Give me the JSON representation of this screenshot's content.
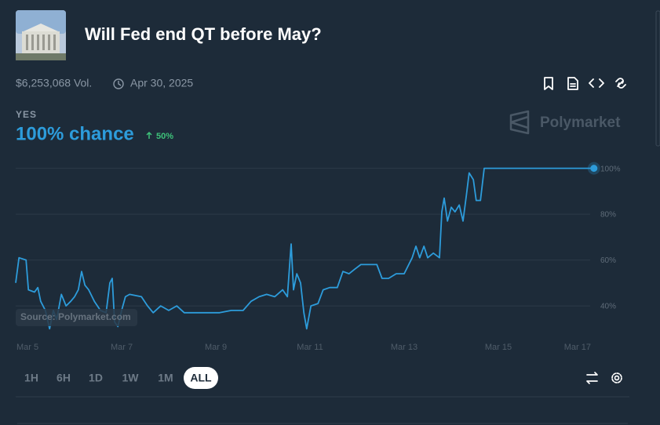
{
  "header": {
    "title": "Will Fed end QT before May?",
    "volume": "$6,253,068 Vol.",
    "end_date": "Apr 30, 2025"
  },
  "outcome": {
    "chance": "100% chance",
    "change": "50%"
  },
  "watermark": {
    "brand": "Polymarket",
    "source": "Source: Polymarket.com"
  },
  "chart_data": {
    "type": "line",
    "x": [
      4.75,
      4.82,
      4.97,
      5.02,
      5.15,
      5.22,
      5.28,
      5.38,
      5.47,
      5.55,
      5.62,
      5.72,
      5.82,
      5.92,
      6.0,
      6.08,
      6.15,
      6.22,
      6.3,
      6.42,
      6.55,
      6.67,
      6.75,
      6.8,
      6.85,
      6.92,
      7.0,
      7.08,
      7.17,
      7.42,
      7.55,
      7.67,
      7.83,
      8.0,
      8.17,
      8.33,
      8.58,
      8.83,
      9.08,
      9.33,
      9.58,
      9.75,
      9.92,
      10.08,
      10.25,
      10.42,
      10.52,
      10.6,
      10.65,
      10.72,
      10.8,
      10.87,
      10.93,
      11.02,
      11.17,
      11.28,
      11.42,
      11.58,
      11.7,
      11.83,
      11.95,
      12.08,
      12.25,
      12.42,
      12.53,
      12.67,
      12.83,
      13.0,
      13.17,
      13.25,
      13.33,
      13.42,
      13.5,
      13.62,
      13.75,
      13.8,
      13.85,
      13.92,
      14.0,
      14.08,
      14.17,
      14.25,
      14.32,
      14.38,
      14.47,
      14.53,
      14.62,
      14.7,
      15.25,
      16.08,
      17.03
    ],
    "series": [
      {
        "name": "YES",
        "color": "#2d9cdb",
        "values": [
          50,
          61,
          60,
          47,
          46,
          48,
          42,
          38,
          30,
          38,
          34,
          45,
          40,
          42,
          44,
          47,
          55,
          49,
          47,
          42,
          38,
          37,
          50,
          52,
          33,
          31,
          38,
          44,
          45,
          44,
          40,
          37,
          40,
          38,
          40,
          37,
          37,
          37,
          37,
          38,
          38,
          42,
          44,
          45,
          44,
          47,
          44,
          67,
          47,
          54,
          50,
          37,
          30,
          40,
          41,
          47,
          48,
          48,
          55,
          54,
          56,
          58,
          58,
          58,
          52,
          52,
          54,
          54,
          61,
          66,
          61,
          66,
          61,
          63,
          61,
          81,
          87,
          77,
          83,
          81,
          84,
          77,
          88,
          98,
          95,
          86,
          86,
          100,
          100,
          100,
          100
        ]
      }
    ],
    "xlim": [
      4.75,
      17.05
    ],
    "xticks": [
      {
        "value": 5,
        "label": "Mar 5"
      },
      {
        "value": 7,
        "label": "Mar 7"
      },
      {
        "value": 9,
        "label": "Mar 9"
      },
      {
        "value": 11,
        "label": "Mar 11"
      },
      {
        "value": 13,
        "label": "Mar 13"
      },
      {
        "value": 15,
        "label": "Mar 15"
      },
      {
        "value": 17,
        "label": "Mar 17"
      }
    ],
    "ylim": [
      26,
      105
    ],
    "yticks": [
      {
        "value": 40,
        "label": "40%"
      },
      {
        "value": 60,
        "label": "60%"
      },
      {
        "value": 80,
        "label": "80%"
      },
      {
        "value": 100,
        "label": "100%"
      }
    ],
    "grid": true
  },
  "ranges": [
    "1H",
    "6H",
    "1D",
    "1W",
    "1M",
    "ALL"
  ],
  "active_range": 5
}
